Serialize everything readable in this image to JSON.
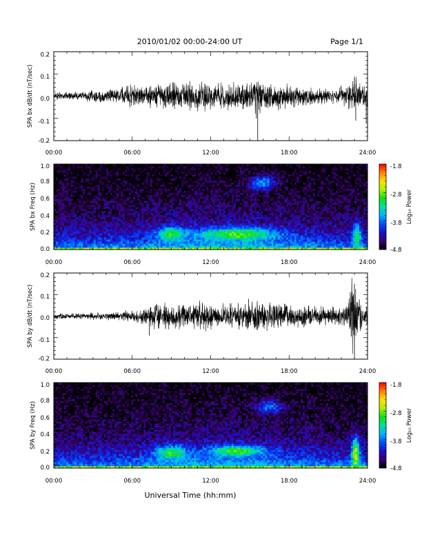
{
  "header": {
    "title": "2010/01/02  00:00-24:00 UT",
    "page": "Page 1/1"
  },
  "footer": {
    "xlabel": "Universal Time (hh:mm)"
  },
  "chart_data": [
    {
      "type": "line",
      "ylabel": "SPA bx dB/dt (nT/sec)",
      "xlim": [
        0,
        24
      ],
      "ylim": [
        -0.2,
        0.2
      ],
      "x_ticks": [
        "00:00",
        "06:00",
        "12:00",
        "18:00",
        "24:00"
      ],
      "y_ticks": [
        "0.2",
        "0.1",
        "0.0",
        "-0.1",
        "-0.2"
      ],
      "color": "#000000",
      "envelope": {
        "hours": [
          0,
          1,
          2,
          3,
          4,
          5,
          5.5,
          6,
          7,
          8,
          9,
          10,
          11,
          12,
          13,
          14,
          15,
          15.5,
          16,
          17,
          18,
          19,
          20,
          21,
          22,
          22.5,
          23,
          23.5,
          24
        ],
        "amplitude": [
          0.015,
          0.015,
          0.018,
          0.022,
          0.025,
          0.03,
          0.05,
          0.05,
          0.045,
          0.05,
          0.06,
          0.055,
          0.06,
          0.055,
          0.05,
          0.055,
          0.06,
          0.07,
          0.06,
          0.05,
          0.05,
          0.04,
          0.035,
          0.03,
          0.04,
          0.05,
          0.09,
          0.05,
          0.05
        ]
      },
      "spikes": [
        {
          "hour": 15.6,
          "value": -0.2
        },
        {
          "hour": 15.5,
          "value": -0.1
        },
        {
          "hour": 23.0,
          "value": 0.08
        },
        {
          "hour": 23.1,
          "value": -0.11
        },
        {
          "hour": 23.9,
          "value": -0.12
        }
      ]
    },
    {
      "type": "heatmap",
      "ylabel": "SPA bx Freq (Hz)",
      "xlim": [
        0,
        24
      ],
      "ylim": [
        0.0,
        1.0
      ],
      "x_ticks": [
        "00:00",
        "06:00",
        "12:00",
        "18:00",
        "24:00"
      ],
      "y_ticks": [
        "1.0",
        "0.8",
        "0.6",
        "0.4",
        "0.2",
        "0.0"
      ],
      "colorbar": {
        "label": "Log₁₀ Power",
        "ticks": [
          "-1.8",
          "-2.8",
          "-3.8",
          "-4.8"
        ],
        "range": [
          -4.8,
          -1.8
        ],
        "colors": [
          "#000000",
          "#3a0070",
          "#1a10c8",
          "#0050ff",
          "#00b4ff",
          "#00e0a0",
          "#10e010",
          "#b0f000",
          "#ffe000",
          "#ff8000",
          "#ff0000"
        ]
      },
      "features": [
        {
          "hour": 14.0,
          "freq": 0.18,
          "power": -2.9,
          "width_h": 3.0,
          "width_f": 0.07
        },
        {
          "hour": 9.0,
          "freq": 0.18,
          "power": -3.0,
          "width_h": 1.0,
          "width_f": 0.08
        },
        {
          "hour": 16.0,
          "freq": 0.78,
          "power": -3.7,
          "width_h": 1.0,
          "width_f": 0.08
        },
        {
          "hour": 23.2,
          "freq": 0.15,
          "power": -3.0,
          "width_h": 0.3,
          "width_f": 0.15
        }
      ]
    },
    {
      "type": "line",
      "ylabel": "SPA by dB/dt (nT/sec)",
      "xlim": [
        0,
        24
      ],
      "ylim": [
        -0.2,
        0.2
      ],
      "x_ticks": [
        "00:00",
        "06:00",
        "12:00",
        "18:00",
        "24:00"
      ],
      "y_ticks": [
        "0.2",
        "0.1",
        "0.0",
        "-0.1",
        "-0.2"
      ],
      "color": "#000000",
      "envelope": {
        "hours": [
          0,
          1,
          2,
          3,
          4,
          5,
          6,
          7,
          7.5,
          8,
          9,
          10,
          11,
          12,
          13,
          14,
          15,
          15.5,
          16,
          17,
          18,
          19,
          20,
          21,
          22,
          22.5,
          22.8,
          23,
          23.3,
          23.6,
          24
        ],
        "amplitude": [
          0.012,
          0.012,
          0.012,
          0.015,
          0.015,
          0.018,
          0.025,
          0.035,
          0.05,
          0.05,
          0.05,
          0.05,
          0.06,
          0.055,
          0.05,
          0.05,
          0.055,
          0.07,
          0.06,
          0.055,
          0.05,
          0.045,
          0.04,
          0.035,
          0.035,
          0.05,
          0.2,
          0.22,
          0.1,
          0.04,
          0.04
        ]
      },
      "spikes": [
        {
          "hour": 7.3,
          "value": -0.09
        },
        {
          "hour": 14.9,
          "value": 0.08
        },
        {
          "hour": 23.0,
          "value": 0.15
        },
        {
          "hour": 23.0,
          "value": -0.2
        }
      ]
    },
    {
      "type": "heatmap",
      "ylabel": "SPA by Freq (Hz)",
      "xlim": [
        0,
        24
      ],
      "ylim": [
        0.0,
        1.0
      ],
      "x_ticks": [
        "00:00",
        "06:00",
        "12:00",
        "18:00",
        "24:00"
      ],
      "y_ticks": [
        "1.0",
        "0.8",
        "0.6",
        "0.4",
        "0.2",
        "0.0"
      ],
      "colorbar": {
        "label": "Log₁₀ Power",
        "ticks": [
          "-1.8",
          "-2.8",
          "-3.8",
          "-4.8"
        ],
        "range": [
          -4.8,
          -1.8
        ],
        "colors": [
          "#000000",
          "#3a0070",
          "#1a10c8",
          "#0050ff",
          "#00b4ff",
          "#00e0a0",
          "#10e010",
          "#b0f000",
          "#ffe000",
          "#ff8000",
          "#ff0000"
        ]
      },
      "features": [
        {
          "hour": 14.0,
          "freq": 0.2,
          "power": -2.9,
          "width_h": 2.0,
          "width_f": 0.06
        },
        {
          "hour": 9.0,
          "freq": 0.18,
          "power": -3.0,
          "width_h": 1.2,
          "width_f": 0.08
        },
        {
          "hour": 16.5,
          "freq": 0.72,
          "power": -3.8,
          "width_h": 1.0,
          "width_f": 0.08
        },
        {
          "hour": 23.1,
          "freq": 0.15,
          "power": -2.6,
          "width_h": 0.3,
          "width_f": 0.2
        }
      ]
    }
  ]
}
